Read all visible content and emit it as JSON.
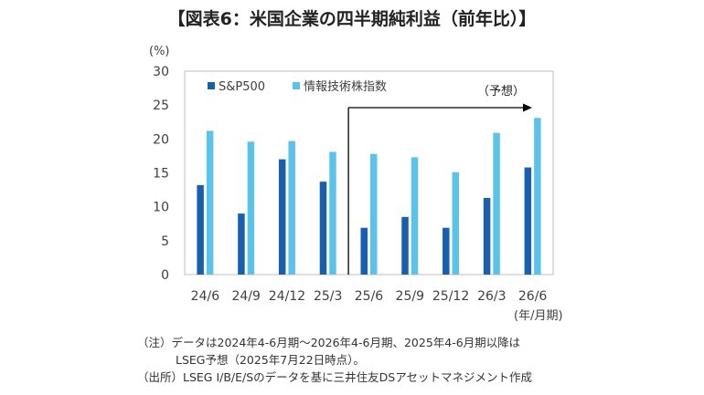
{
  "chart_data": {
    "type": "bar",
    "title": "【図表6：米国企業の四半期純利益（前年比）】",
    "y_unit": "(%)",
    "x_unit": "(年/月期)",
    "categories": [
      "24/6",
      "24/9",
      "24/12",
      "25/3",
      "25/6",
      "25/9",
      "25/12",
      "26/3",
      "26/6"
    ],
    "series": [
      {
        "name": "S&P500",
        "color": "#1a5fad",
        "values": [
          13.2,
          9.0,
          17.0,
          13.7,
          6.9,
          8.5,
          6.9,
          11.3,
          15.8
        ]
      },
      {
        "name": "情報技術株指数",
        "color": "#5bc2ea",
        "values": [
          21.2,
          19.6,
          19.7,
          18.1,
          17.8,
          17.3,
          15.1,
          20.9,
          23.1
        ]
      }
    ],
    "ylim": [
      0,
      30
    ],
    "yticks": [
      0,
      5,
      10,
      15,
      20,
      25,
      30
    ],
    "forecast_label": "（予想）",
    "legend_position": "top-left",
    "grid": false
  },
  "notes": {
    "line1": "（注）データは2024年4-6月期～2026年4-6月期、2025年4-6月期以降は",
    "line2": "LSEG予想（2025年7月22日時点）。",
    "line3": "（出所）LSEG I/B/E/Sのデータを基に三井住友DSアセットマネジメント作成"
  }
}
